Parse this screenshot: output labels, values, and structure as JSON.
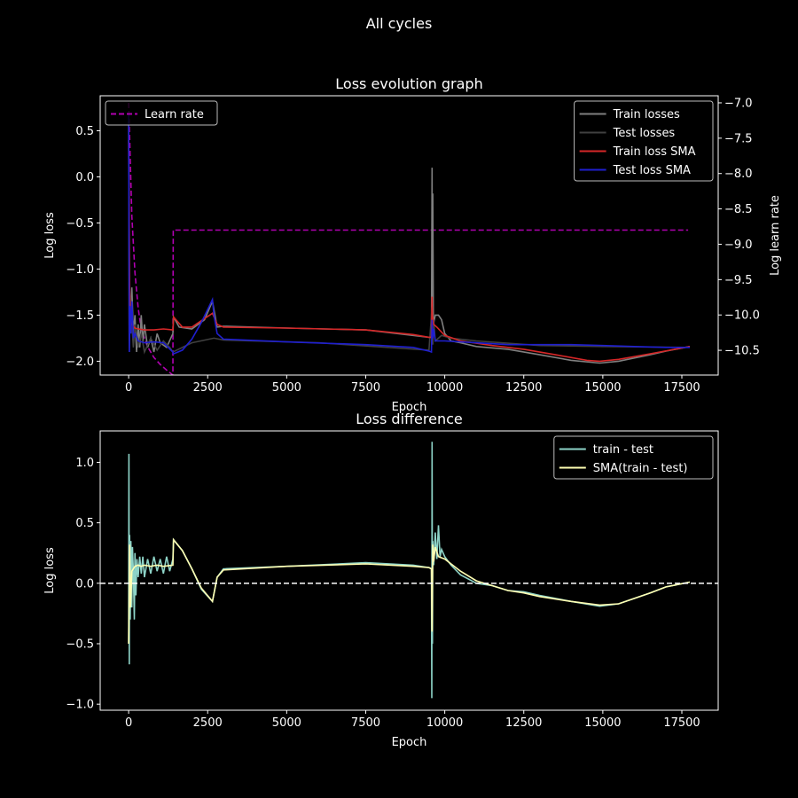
{
  "figure_title": "All cycles",
  "chart_data": [
    {
      "type": "line",
      "title": "Loss evolution graph",
      "xlabel": "Epoch",
      "ylabel": "Log loss",
      "ylabel_right": "Log learn rate",
      "xlim": [
        -900,
        18650
      ],
      "ylim": [
        -2.15,
        0.88
      ],
      "ylim_right": [
        -10.85,
        -6.9
      ],
      "xticks": [
        0,
        2500,
        5000,
        7500,
        10000,
        12500,
        15000,
        17500
      ],
      "yticks": [
        0.5,
        0.0,
        -0.5,
        -1.0,
        -1.5,
        -2.0
      ],
      "yticks_right": [
        -7.0,
        -7.5,
        -8.0,
        -8.5,
        -9.0,
        -9.5,
        -10.0,
        -10.5
      ],
      "legend_left": {
        "position": "upper-left",
        "entries": [
          "Learn rate"
        ]
      },
      "legend_right": {
        "position": "upper-right",
        "entries": [
          "Train losses",
          "Test losses",
          "Train loss SMA",
          "Test loss SMA"
        ]
      },
      "series": [
        {
          "name": "Learn rate",
          "axis": "right",
          "color": "#b000b0",
          "style": "dashed",
          "x": [
            0,
            100,
            200,
            300,
            400,
            600,
            800,
            1000,
            1200,
            1400,
            1405,
            1410,
            17700
          ],
          "y": [
            -7.0,
            -8.6,
            -9.4,
            -9.9,
            -10.2,
            -10.45,
            -10.6,
            -10.7,
            -10.78,
            -10.85,
            -9.6,
            -8.8,
            -8.8
          ]
        },
        {
          "name": "Train losses",
          "color": "#7f7f7f",
          "style": "solid",
          "x": [
            0,
            20,
            40,
            70,
            100,
            150,
            200,
            250,
            300,
            350,
            400,
            450,
            500,
            600,
            700,
            800,
            900,
            1000,
            1200,
            1400,
            1420,
            1600,
            2000,
            2400,
            2650,
            2800,
            3000,
            5000,
            7500,
            9000,
            9500,
            9580,
            9600,
            9610,
            9620,
            9640,
            9700,
            9800,
            9900,
            10000,
            10200,
            10500,
            11000,
            12000,
            13000,
            14000,
            14900,
            15500,
            16500,
            17000,
            17750
          ],
          "y": [
            0.6,
            -1.9,
            -1.3,
            -1.55,
            -1.2,
            -1.7,
            -1.5,
            -1.9,
            -1.6,
            -1.85,
            -1.5,
            -1.8,
            -1.6,
            -1.85,
            -1.75,
            -1.9,
            -1.7,
            -1.8,
            -1.85,
            -1.7,
            -1.52,
            -1.63,
            -1.65,
            -1.55,
            -1.35,
            -1.63,
            -1.62,
            -1.64,
            -1.66,
            -1.72,
            -1.74,
            -1.74,
            0.1,
            -1.7,
            -0.18,
            -1.6,
            -1.5,
            -1.5,
            -1.55,
            -1.7,
            -1.78,
            -1.8,
            -1.84,
            -1.87,
            -1.93,
            -1.99,
            -2.02,
            -2.0,
            -1.93,
            -1.89,
            -1.84
          ]
        },
        {
          "name": "Test losses",
          "color": "#404040",
          "style": "solid",
          "x": [
            0,
            30,
            60,
            100,
            150,
            200,
            300,
            400,
            500,
            700,
            900,
            1100,
            1300,
            1400,
            2000,
            2700,
            3000,
            6000,
            9500,
            9600,
            9620,
            9650,
            9700,
            9900,
            10200,
            11000,
            13000,
            15000,
            17750
          ],
          "y": [
            0.6,
            -1.7,
            -1.3,
            -1.6,
            -1.85,
            -1.6,
            -1.85,
            -1.7,
            -1.9,
            -1.75,
            -1.88,
            -1.78,
            -1.85,
            -1.9,
            -1.8,
            -1.75,
            -1.77,
            -1.8,
            -1.88,
            -1.4,
            -1.82,
            -1.55,
            -1.78,
            -1.72,
            -1.75,
            -1.78,
            -1.83,
            -1.84,
            -1.85
          ]
        },
        {
          "name": "Train loss SMA",
          "color": "#d62728",
          "style": "solid",
          "x": [
            0,
            30,
            60,
            100,
            150,
            200,
            300,
            500,
            800,
            1100,
            1400,
            1420,
            1700,
            2000,
            2300,
            2650,
            2800,
            3000,
            5000,
            7500,
            9000,
            9500,
            9580,
            9600,
            9610,
            9650,
            9750,
            10000,
            10500,
            11500,
            12500,
            13500,
            14500,
            14900,
            15500,
            16500,
            17750
          ],
          "y": [
            0.4,
            -1.2,
            -1.55,
            -1.6,
            -1.62,
            -1.64,
            -1.65,
            -1.66,
            -1.66,
            -1.65,
            -1.66,
            -1.52,
            -1.63,
            -1.63,
            -1.56,
            -1.48,
            -1.6,
            -1.63,
            -1.64,
            -1.66,
            -1.71,
            -1.74,
            -1.74,
            -1.3,
            -1.5,
            -1.6,
            -1.63,
            -1.72,
            -1.78,
            -1.83,
            -1.87,
            -1.93,
            -1.99,
            -2.0,
            -1.98,
            -1.92,
            -1.84
          ]
        },
        {
          "name": "Test loss SMA",
          "color": "#1f1fd0",
          "style": "solid",
          "x": [
            0,
            20,
            40,
            70,
            100,
            150,
            200,
            300,
            500,
            800,
            1100,
            1400,
            1420,
            1700,
            2000,
            2300,
            2650,
            2700,
            2800,
            3000,
            5000,
            7500,
            9000,
            9500,
            9580,
            9600,
            9620,
            9650,
            9700,
            10000,
            11000,
            12000,
            13000,
            14000,
            15000,
            16000,
            17000,
            17750
          ],
          "y": [
            0.7,
            -1.9,
            -1.4,
            -1.7,
            -1.35,
            -1.75,
            -1.7,
            -1.78,
            -1.8,
            -1.79,
            -1.8,
            -1.9,
            -1.92,
            -1.88,
            -1.76,
            -1.58,
            -1.33,
            -1.5,
            -1.7,
            -1.76,
            -1.79,
            -1.82,
            -1.85,
            -1.89,
            -1.9,
            -1.55,
            -1.75,
            -1.65,
            -1.78,
            -1.78,
            -1.8,
            -1.82,
            -1.82,
            -1.82,
            -1.83,
            -1.84,
            -1.85,
            -1.85
          ]
        }
      ]
    },
    {
      "type": "line",
      "title": "Loss difference",
      "xlabel": "Epoch",
      "ylabel": "Log loss",
      "xlim": [
        -900,
        18650
      ],
      "ylim": [
        -1.05,
        1.26
      ],
      "xticks": [
        0,
        2500,
        5000,
        7500,
        10000,
        12500,
        15000,
        17500
      ],
      "yticks": [
        1.0,
        0.5,
        0.0,
        -0.5,
        -1.0
      ],
      "hline": 0.0,
      "legend": {
        "position": "upper-right",
        "entries": [
          "train - test",
          "SMA(train - test)"
        ]
      },
      "series": [
        {
          "name": "train - test",
          "color": "#8dd3c7",
          "style": "solid",
          "x": [
            0,
            10,
            20,
            30,
            50,
            70,
            100,
            120,
            150,
            180,
            200,
            230,
            260,
            300,
            350,
            400,
            450,
            500,
            600,
            700,
            800,
            900,
            1000,
            1100,
            1200,
            1300,
            1400,
            1420,
            1700,
            2000,
            2300,
            2650,
            2800,
            3000,
            5000,
            7500,
            9000,
            9500,
            9580,
            9590,
            9600,
            9610,
            9620,
            9650,
            9700,
            9750,
            9800,
            9850,
            9900,
            10000,
            10200,
            10500,
            11000,
            11500,
            12000,
            12500,
            13000,
            14000,
            14900,
            15500,
            16500,
            17000,
            17750
          ],
          "y": [
            -0.5,
            1.07,
            -0.67,
            0.4,
            -0.3,
            0.35,
            -0.2,
            0.3,
            0.1,
            -0.3,
            0.25,
            -0.1,
            0.2,
            0.05,
            0.22,
            0.08,
            0.22,
            0.05,
            0.2,
            0.08,
            0.22,
            0.1,
            0.2,
            0.08,
            0.22,
            0.1,
            0.2,
            0.36,
            0.27,
            0.12,
            -0.05,
            -0.15,
            0.05,
            0.12,
            0.14,
            0.17,
            0.15,
            0.13,
            0.12,
            -0.95,
            1.17,
            -0.5,
            0.35,
            0.15,
            0.42,
            0.2,
            0.48,
            0.22,
            0.28,
            0.22,
            0.15,
            0.07,
            0.0,
            -0.02,
            -0.06,
            -0.07,
            -0.1,
            -0.15,
            -0.19,
            -0.17,
            -0.08,
            -0.03,
            0.01
          ]
        },
        {
          "name": "SMA(train - test)",
          "color": "#ffffb3",
          "style": "solid",
          "x": [
            0,
            30,
            60,
            100,
            150,
            200,
            300,
            400,
            500,
            700,
            900,
            1100,
            1400,
            1420,
            1700,
            2000,
            2300,
            2650,
            2800,
            3000,
            5000,
            7500,
            9000,
            9500,
            9580,
            9600,
            9620,
            9650,
            9700,
            9800,
            10000,
            10500,
            11000,
            11500,
            12000,
            12500,
            13000,
            14000,
            14900,
            15500,
            16500,
            17000,
            17750
          ],
          "y": [
            -0.5,
            0.32,
            -0.2,
            0.1,
            0.12,
            0.14,
            0.15,
            0.14,
            0.15,
            0.14,
            0.15,
            0.14,
            0.15,
            0.36,
            0.27,
            0.12,
            -0.04,
            -0.15,
            0.05,
            0.11,
            0.14,
            0.16,
            0.14,
            0.13,
            0.12,
            -0.4,
            0.32,
            0.18,
            0.3,
            0.22,
            0.2,
            0.1,
            0.02,
            -0.02,
            -0.06,
            -0.08,
            -0.11,
            -0.15,
            -0.18,
            -0.17,
            -0.08,
            -0.03,
            0.01
          ]
        }
      ]
    }
  ]
}
